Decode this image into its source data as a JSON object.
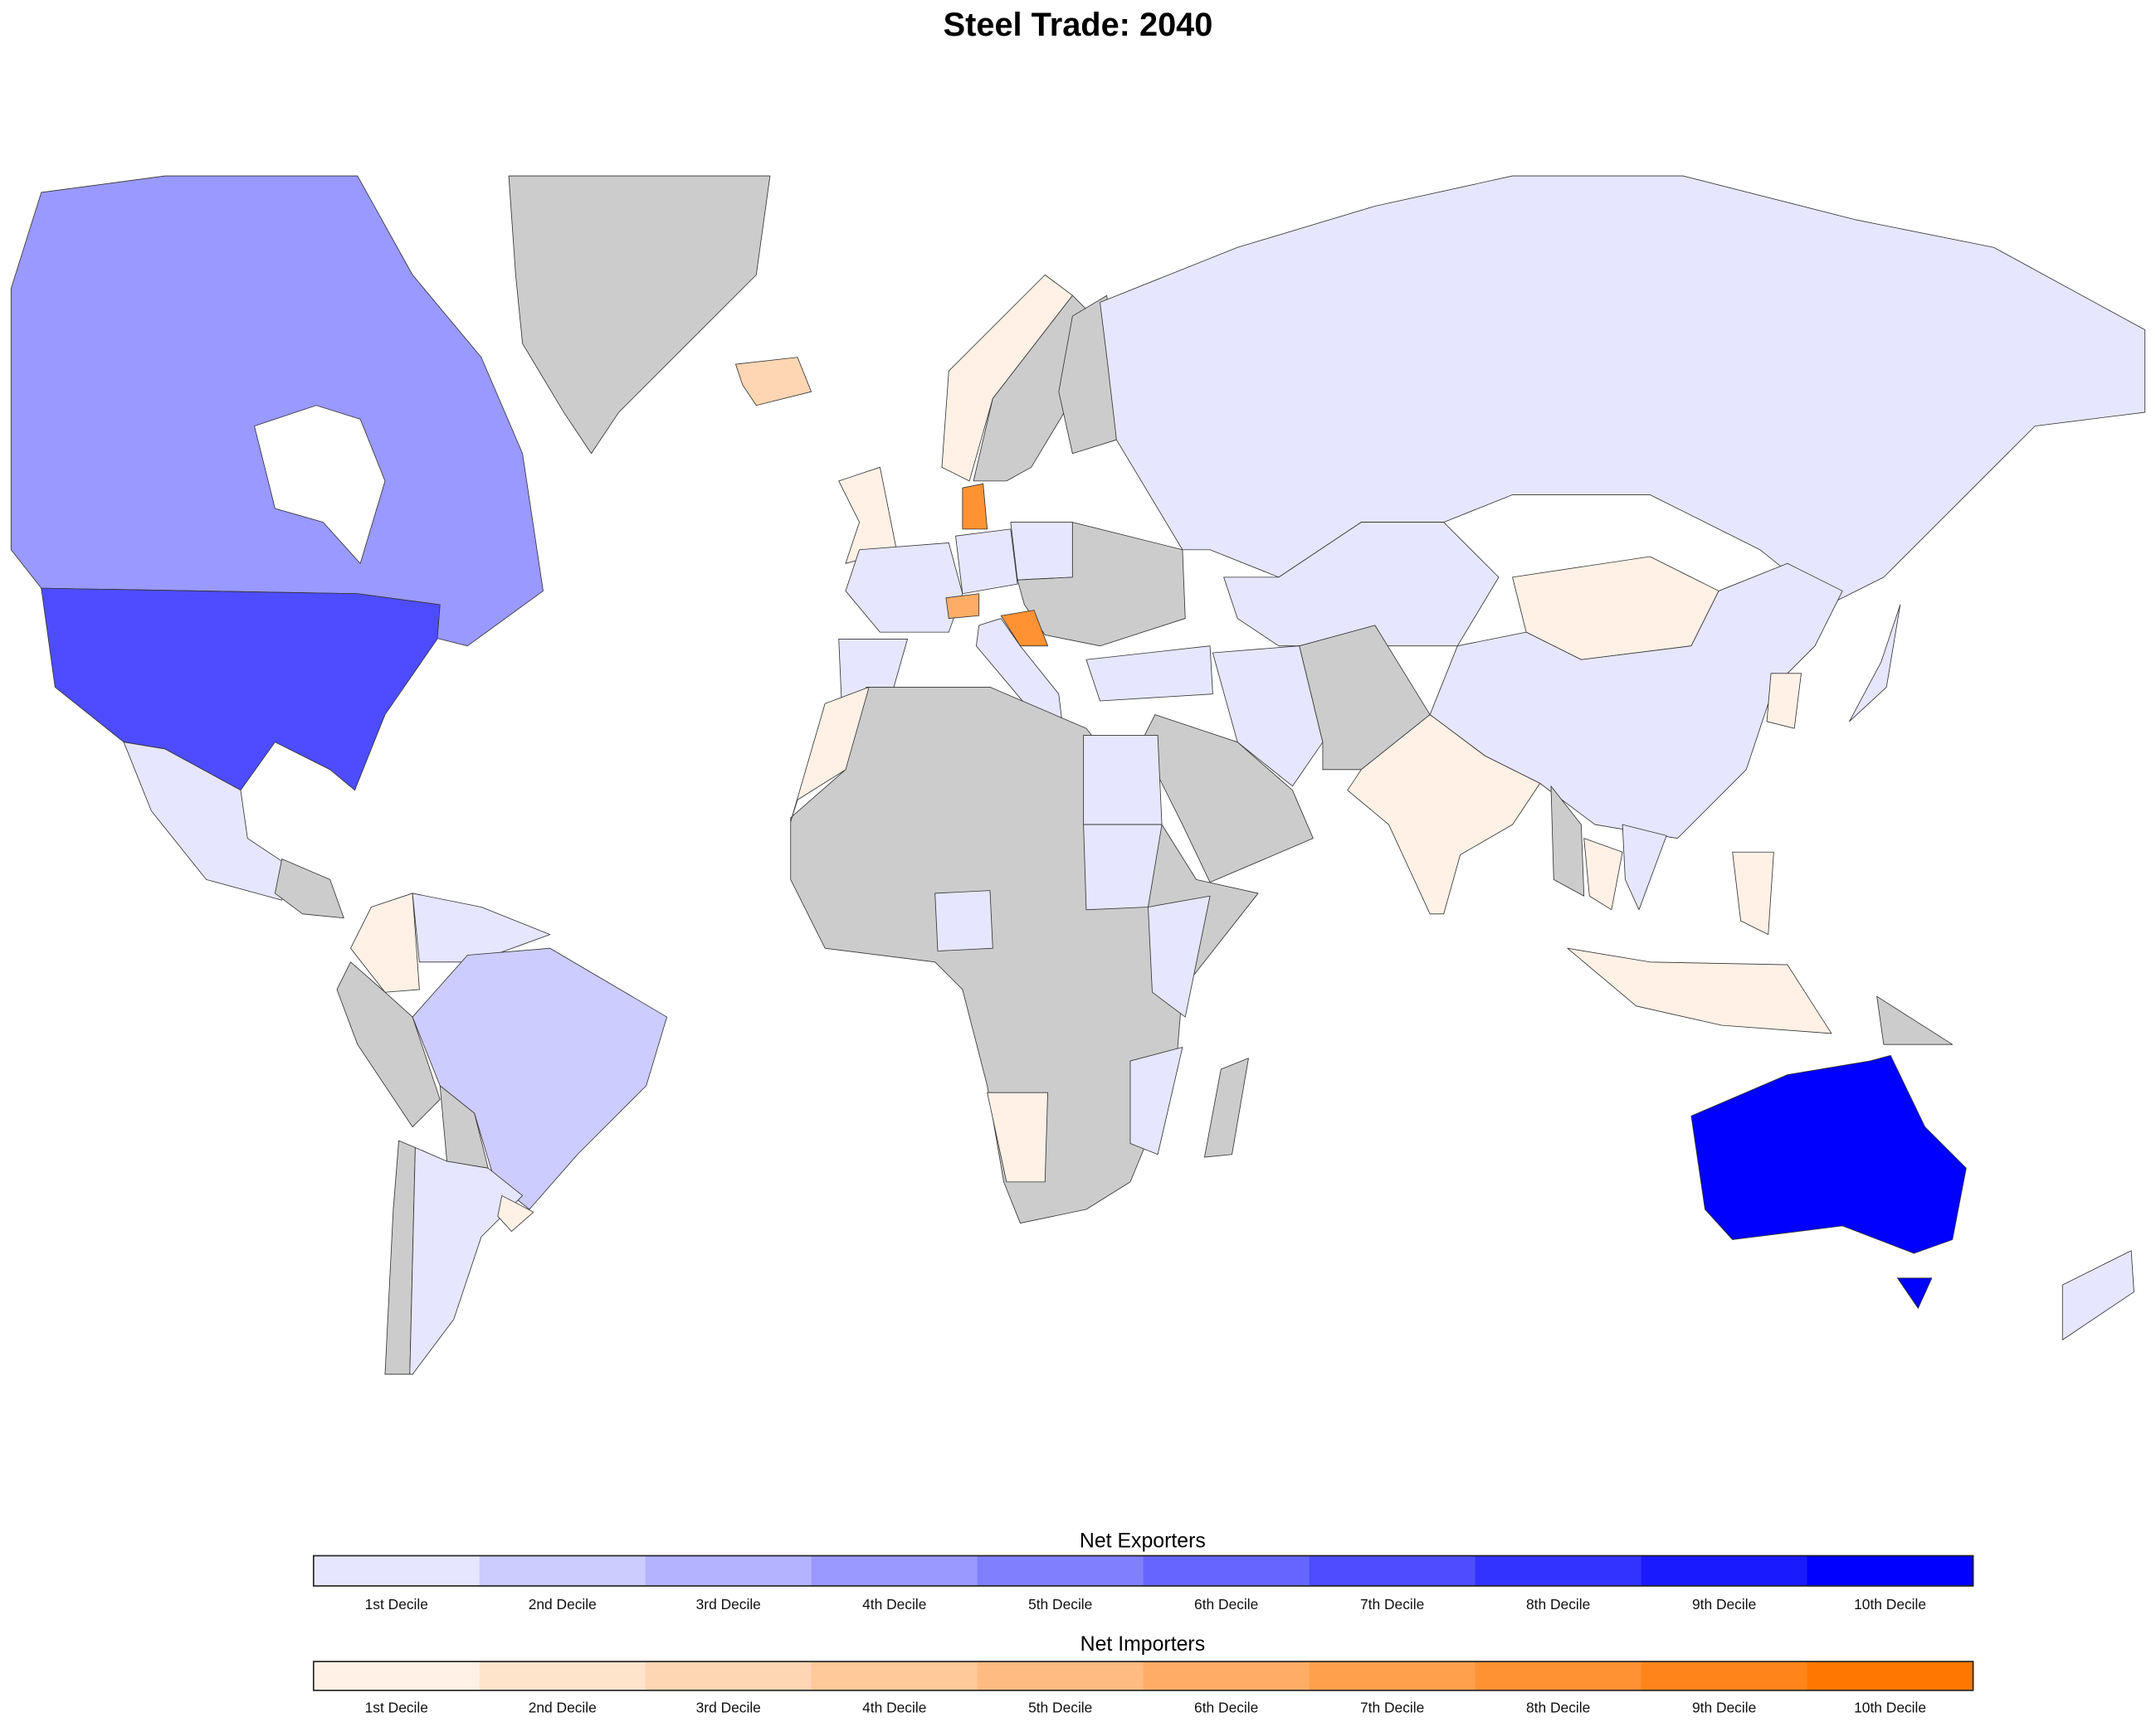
{
  "title": "Steel Trade: 2040",
  "colors": {
    "no_data": "#cccccc",
    "water": "#ffffff",
    "border": "#333333",
    "exporters": [
      "#e6e6ff",
      "#ccccff",
      "#b3b3ff",
      "#9999ff",
      "#8080ff",
      "#6666ff",
      "#4d4dff",
      "#3333ff",
      "#1a1aff",
      "#0000ff"
    ],
    "importers": [
      "#fff1e6",
      "#ffe4cc",
      "#ffd6b3",
      "#ffc999",
      "#ffbb80",
      "#ffad66",
      "#ffa04d",
      "#ff9233",
      "#ff851a",
      "#ff7700"
    ]
  },
  "legend": {
    "exporters": {
      "title": "Net Exporters",
      "labels": [
        "1st Decile",
        "2nd Decile",
        "3rd Decile",
        "4th Decile",
        "5th Decile",
        "6th Decile",
        "7th Decile",
        "8th Decile",
        "9th Decile",
        "10th Decile"
      ]
    },
    "importers": {
      "title": "Net Importers",
      "labels": [
        "1st Decile",
        "2nd Decile",
        "3rd Decile",
        "4th Decile",
        "5th Decile",
        "6th Decile",
        "7th Decile",
        "8th Decile",
        "9th Decile",
        "10th Decile"
      ]
    }
  },
  "regions": {
    "canada": "exporter-4",
    "usa": "exporter-7",
    "mexico": "exporter-1",
    "central-america": "none",
    "colombia": "importer-1",
    "venezuela": "exporter-1",
    "brazil": "exporter-2",
    "peru": "none",
    "bolivia": "none",
    "argentina": "exporter-1",
    "chile": "none",
    "uruguay": "importer-1",
    "greenland": "none",
    "iceland": "importer-3",
    "norway": "importer-1",
    "sweden": "none",
    "finland": "none",
    "uk": "importer-1",
    "france": "exporter-1",
    "spain": "exporter-1",
    "germany": "exporter-1",
    "poland": "exporter-1",
    "denmark": "importer-8",
    "switzerland": "importer-6",
    "croatia": "importer-8",
    "italy": "exporter-1",
    "eastern-europe": "none",
    "turkey": "exporter-1",
    "russia": "exporter-1",
    "kazakhstan": "exporter-1",
    "mongolia": "importer-1",
    "china": "exporter-1",
    "india": "importer-1",
    "iran": "exporter-1",
    "pakistan-afghanistan": "none",
    "arabia": "none",
    "africa-other": "none",
    "morocco": "importer-1",
    "egypt": "exporter-1",
    "sudan": "exporter-1",
    "nigeria": "exporter-1",
    "east-africa": "exporter-1",
    "mozambique": "exporter-1",
    "namibia": "importer-1",
    "madagascar": "none",
    "myanmar": "none",
    "thailand": "importer-1",
    "vietnam": "exporter-1",
    "indonesia": "importer-1",
    "papua-new-guinea": "none",
    "japan": "exporter-1",
    "korea": "importer-1",
    "philippines": "importer-1",
    "australia": "exporter-10",
    "new-zealand": "exporter-1"
  }
}
